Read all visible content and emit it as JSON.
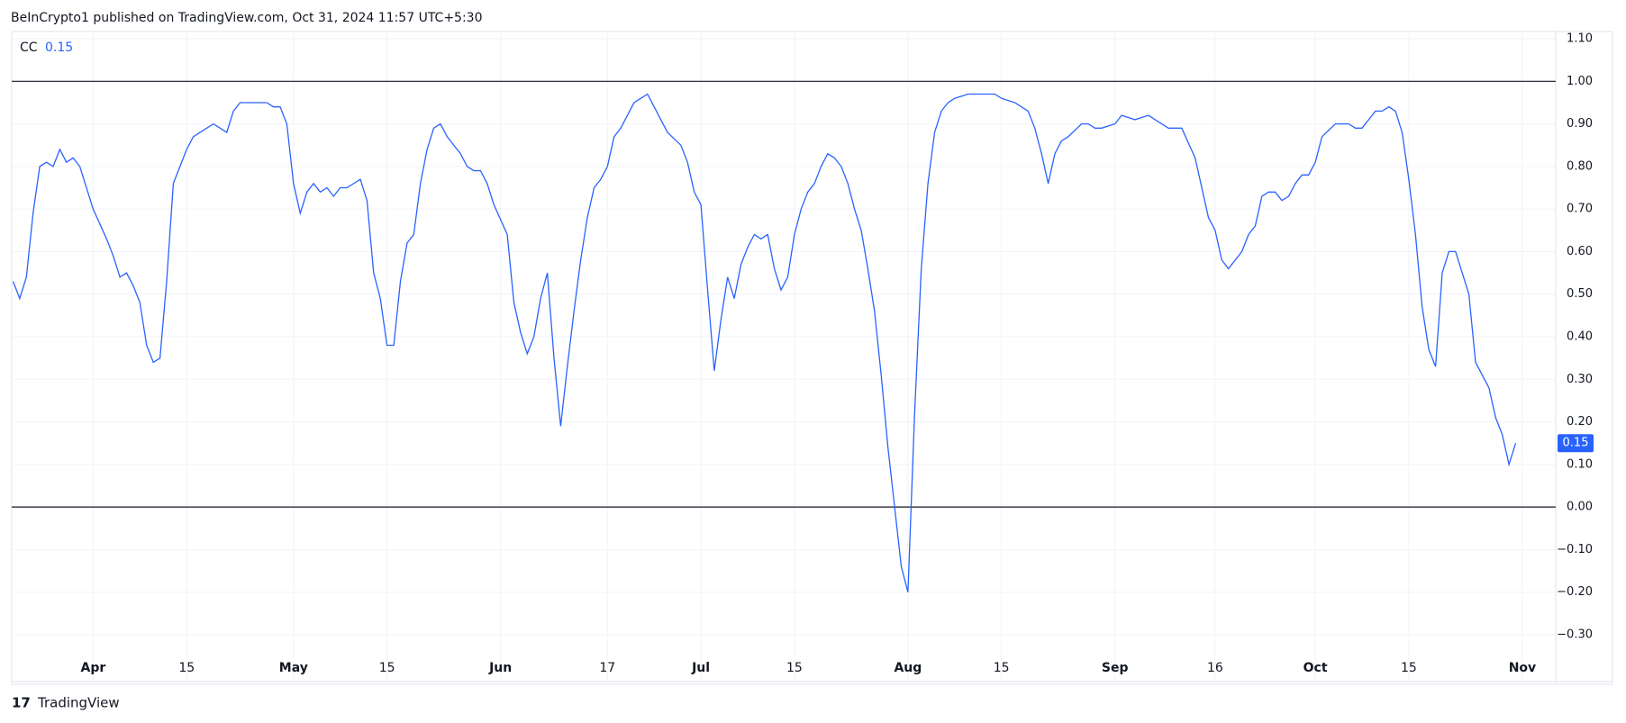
{
  "header": {
    "text": "BeInCrypto1 published on TradingView.com, Oct 31, 2024 11:57 UTC+5:30"
  },
  "footer": {
    "logo": "TradingView"
  },
  "chart_data": {
    "type": "line",
    "x": [
      80,
      81,
      82,
      83,
      84,
      85,
      86,
      87,
      88,
      89,
      90,
      92,
      94,
      95,
      96,
      97,
      98,
      99,
      100,
      101,
      102,
      103,
      104,
      105,
      106,
      107,
      108,
      110,
      111,
      112,
      113,
      114,
      116,
      118,
      119,
      120,
      121,
      122,
      123,
      124,
      125,
      126,
      127,
      128,
      129,
      130,
      132,
      133,
      134,
      135,
      136,
      137,
      138,
      139,
      140,
      141,
      142,
      143,
      144,
      145,
      147,
      148,
      149,
      150,
      151,
      152,
      154,
      155,
      156,
      157,
      158,
      159,
      160,
      161,
      162,
      163,
      164,
      165,
      166,
      167,
      168,
      169,
      170,
      171,
      172,
      173,
      174,
      175,
      176,
      177,
      178,
      180,
      181,
      182,
      183,
      184,
      185,
      186,
      187,
      188,
      189,
      190,
      191,
      192,
      193,
      194,
      195,
      196,
      197,
      198,
      199,
      200,
      201,
      202,
      203,
      204,
      205,
      206,
      207,
      208,
      209,
      210,
      211,
      212,
      213,
      214,
      215,
      216,
      217,
      218,
      219,
      220,
      221,
      223,
      225,
      227,
      228,
      230,
      232,
      233,
      234,
      235,
      236,
      237,
      238,
      240,
      241,
      242,
      243,
      245,
      246,
      248,
      250,
      252,
      253,
      255,
      257,
      259,
      260,
      261,
      262,
      264,
      265,
      266,
      267,
      268,
      269,
      270,
      271,
      272,
      273,
      274,
      275,
      276,
      278,
      280,
      281,
      282,
      283,
      284,
      285,
      286,
      287,
      288,
      289,
      290,
      291,
      292,
      293,
      294,
      295,
      296,
      297,
      298,
      299,
      301,
      302,
      303,
      304,
      305
    ],
    "series": [
      {
        "name": "CC",
        "color": "#2962ff",
        "values": [
          0.53,
          0.49,
          0.54,
          0.69,
          0.8,
          0.81,
          0.8,
          0.84,
          0.81,
          0.82,
          0.8,
          0.7,
          0.63,
          0.59,
          0.54,
          0.55,
          0.52,
          0.48,
          0.38,
          0.34,
          0.35,
          0.53,
          0.76,
          0.8,
          0.84,
          0.87,
          0.88,
          0.9,
          0.89,
          0.88,
          0.93,
          0.95,
          0.95,
          0.95,
          0.94,
          0.94,
          0.9,
          0.76,
          0.69,
          0.74,
          0.76,
          0.74,
          0.75,
          0.73,
          0.75,
          0.75,
          0.77,
          0.72,
          0.55,
          0.49,
          0.38,
          0.38,
          0.53,
          0.62,
          0.64,
          0.76,
          0.84,
          0.89,
          0.9,
          0.87,
          0.83,
          0.8,
          0.79,
          0.79,
          0.76,
          0.71,
          0.64,
          0.48,
          0.41,
          0.36,
          0.4,
          0.49,
          0.55,
          0.35,
          0.19,
          0.33,
          0.46,
          0.58,
          0.68,
          0.75,
          0.77,
          0.8,
          0.87,
          0.89,
          0.92,
          0.95,
          0.96,
          0.97,
          0.94,
          0.91,
          0.88,
          0.85,
          0.81,
          0.74,
          0.71,
          0.51,
          0.32,
          0.44,
          0.54,
          0.49,
          0.57,
          0.61,
          0.64,
          0.63,
          0.64,
          0.56,
          0.51,
          0.54,
          0.64,
          0.7,
          0.74,
          0.76,
          0.8,
          0.83,
          0.82,
          0.8,
          0.76,
          0.7,
          0.65,
          0.56,
          0.46,
          0.31,
          0.14,
          0.0,
          -0.14,
          -0.2,
          0.22,
          0.56,
          0.76,
          0.88,
          0.93,
          0.95,
          0.96,
          0.97,
          0.97,
          0.97,
          0.96,
          0.95,
          0.93,
          0.89,
          0.83,
          0.76,
          0.83,
          0.86,
          0.87,
          0.9,
          0.9,
          0.89,
          0.89,
          0.9,
          0.92,
          0.91,
          0.92,
          0.9,
          0.89,
          0.89,
          0.82,
          0.68,
          0.65,
          0.58,
          0.56,
          0.6,
          0.64,
          0.66,
          0.73,
          0.74,
          0.74,
          0.72,
          0.73,
          0.76,
          0.78,
          0.78,
          0.81,
          0.87,
          0.9,
          0.9,
          0.89,
          0.89,
          0.91,
          0.93,
          0.93,
          0.94,
          0.93,
          0.88,
          0.77,
          0.64,
          0.47,
          0.37,
          0.33,
          0.55,
          0.6,
          0.6,
          0.55,
          0.5,
          0.34,
          0.28,
          0.21,
          0.17,
          0.1,
          0.15
        ]
      }
    ],
    "xlim": [
      79.8,
      311
    ],
    "xticks": [
      {
        "value": 92,
        "label": "Apr"
      },
      {
        "value": 106,
        "label": "15"
      },
      {
        "value": 122,
        "label": "May"
      },
      {
        "value": 136,
        "label": "15"
      },
      {
        "value": 153,
        "label": "Jun"
      },
      {
        "value": 169,
        "label": "17"
      },
      {
        "value": 183,
        "label": "Jul"
      },
      {
        "value": 197,
        "label": "15"
      },
      {
        "value": 214,
        "label": "Aug"
      },
      {
        "value": 228,
        "label": "15"
      },
      {
        "value": 245,
        "label": "Sep"
      },
      {
        "value": 260,
        "label": "16"
      },
      {
        "value": 275,
        "label": "Oct"
      },
      {
        "value": 289,
        "label": "15"
      },
      {
        "value": 306,
        "label": "Nov"
      }
    ],
    "ylim": [
      -0.41,
      1.117
    ],
    "yticks": [
      {
        "value": 1.1,
        "label": "1.10"
      },
      {
        "value": 1,
        "label": "1.00"
      },
      {
        "value": 0.9,
        "label": "0.90"
      },
      {
        "value": 0.8,
        "label": "0.80"
      },
      {
        "value": 0.7,
        "label": "0.70"
      },
      {
        "value": 0.6,
        "label": "0.60"
      },
      {
        "value": 0.5,
        "label": "0.50"
      },
      {
        "value": 0.4,
        "label": "0.40"
      },
      {
        "value": 0.3,
        "label": "0.30"
      },
      {
        "value": 0.2,
        "label": "0.20"
      },
      {
        "value": 0.1,
        "label": "0.10"
      },
      {
        "value": 0,
        "label": "0.00"
      },
      {
        "value": -0.1,
        "label": "−0.10"
      },
      {
        "value": -0.2,
        "label": "−0.20"
      },
      {
        "value": -0.3,
        "label": "−0.30"
      }
    ],
    "hlines": [
      1,
      0
    ],
    "grid": true
  }
}
